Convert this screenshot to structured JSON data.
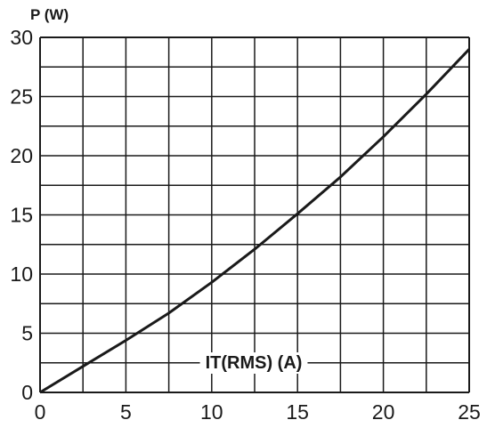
{
  "chart_data": {
    "type": "line",
    "title": "",
    "ylabel": "P (W)",
    "xlabel": "IT(RMS) (A)",
    "xlim": [
      0,
      25
    ],
    "ylim": [
      0,
      30
    ],
    "grid": true,
    "x_ticks": [
      0,
      5,
      10,
      15,
      20,
      25
    ],
    "y_ticks": [
      0,
      5,
      10,
      15,
      20,
      25,
      30
    ],
    "x_tick_labels": [
      "0",
      "5",
      "10",
      "15",
      "20",
      "25"
    ],
    "y_tick_labels": [
      "0",
      "5",
      "10",
      "15",
      "20",
      "25",
      "30"
    ],
    "series": [
      {
        "x": [
          0,
          2.5,
          5,
          7.5,
          10,
          12.5,
          15,
          17.5,
          20,
          22.5,
          25
        ],
        "y": [
          0,
          2.2,
          4.4,
          6.7,
          9.3,
          12.1,
          15.1,
          18.2,
          21.6,
          25.2,
          29.0
        ]
      }
    ]
  }
}
